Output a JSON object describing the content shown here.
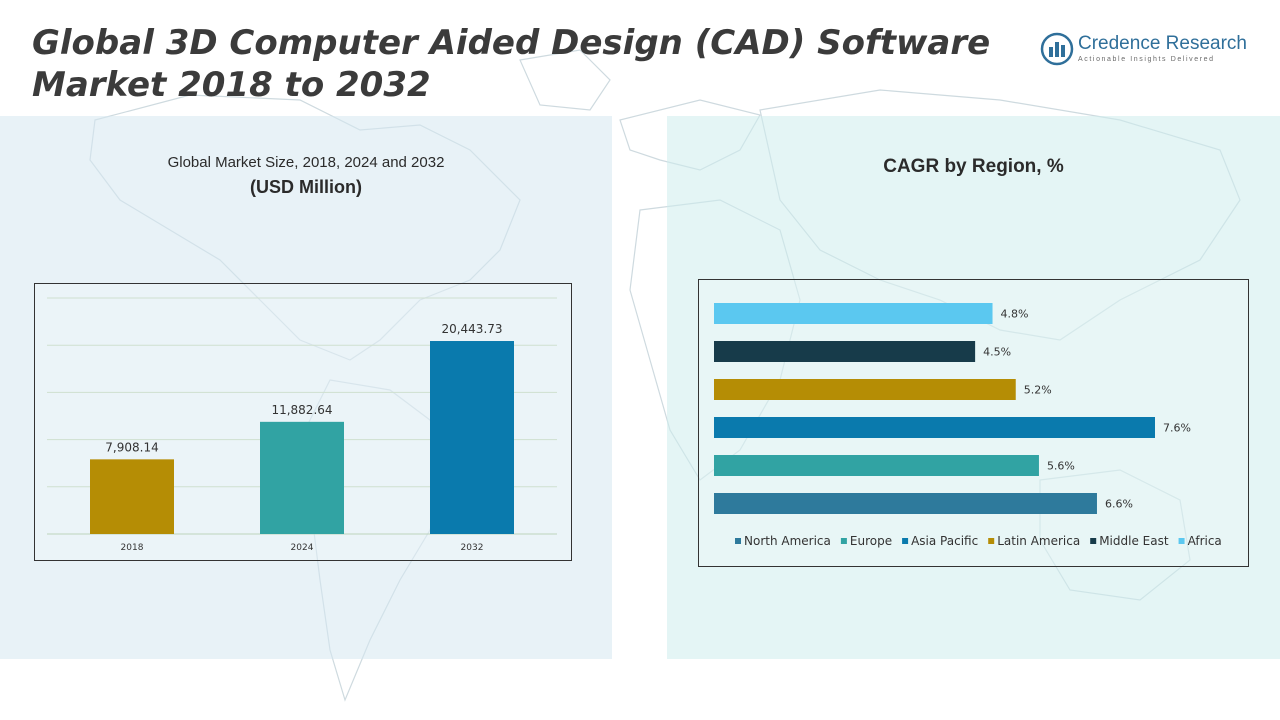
{
  "header": {
    "title_line1": "Global 3D Computer Aided Design (CAD) Software",
    "title_line2": "Market 2018 to 2032"
  },
  "logo": {
    "name": "Credence Research",
    "tagline": "Actionable Insights Delivered",
    "icon": "bar-chart-globe-icon",
    "color": "#2f6f9a"
  },
  "left_panel": {
    "title_line1": "Global Market Size, 2018, 2024 and 2032",
    "title_line2": "(USD Million)"
  },
  "right_panel": {
    "title": "CAGR by Region, %"
  },
  "chart_data": [
    {
      "type": "bar",
      "orientation": "vertical",
      "categories": [
        "2018",
        "2024",
        "2032"
      ],
      "values": [
        7908.14,
        11882.64,
        20443.73
      ],
      "value_labels": [
        "7,908.14",
        "11,882.64",
        "20,443.73"
      ],
      "colors": [
        "#b58d05",
        "#31a3a3",
        "#0a7aad"
      ],
      "ylim": [
        0,
        25000
      ],
      "grid": true,
      "legend": "none"
    },
    {
      "type": "bar",
      "orientation": "horizontal",
      "categories": [
        "North America",
        "Europe",
        "Asia Pacific",
        "Latin America",
        "Middle East",
        "Africa"
      ],
      "values": [
        6.6,
        5.6,
        7.6,
        5.2,
        4.5,
        4.8
      ],
      "value_labels": [
        "6.6%",
        "5.6%",
        "7.6%",
        "5.2%",
        "4.5%",
        "4.8%"
      ],
      "colors": [
        "#2e7a9c",
        "#31a3a3",
        "#0a7aad",
        "#b58d05",
        "#173b4a",
        "#5bc8f0"
      ],
      "xlim": [
        0,
        8
      ],
      "grid": false,
      "legend": "bottom"
    }
  ]
}
